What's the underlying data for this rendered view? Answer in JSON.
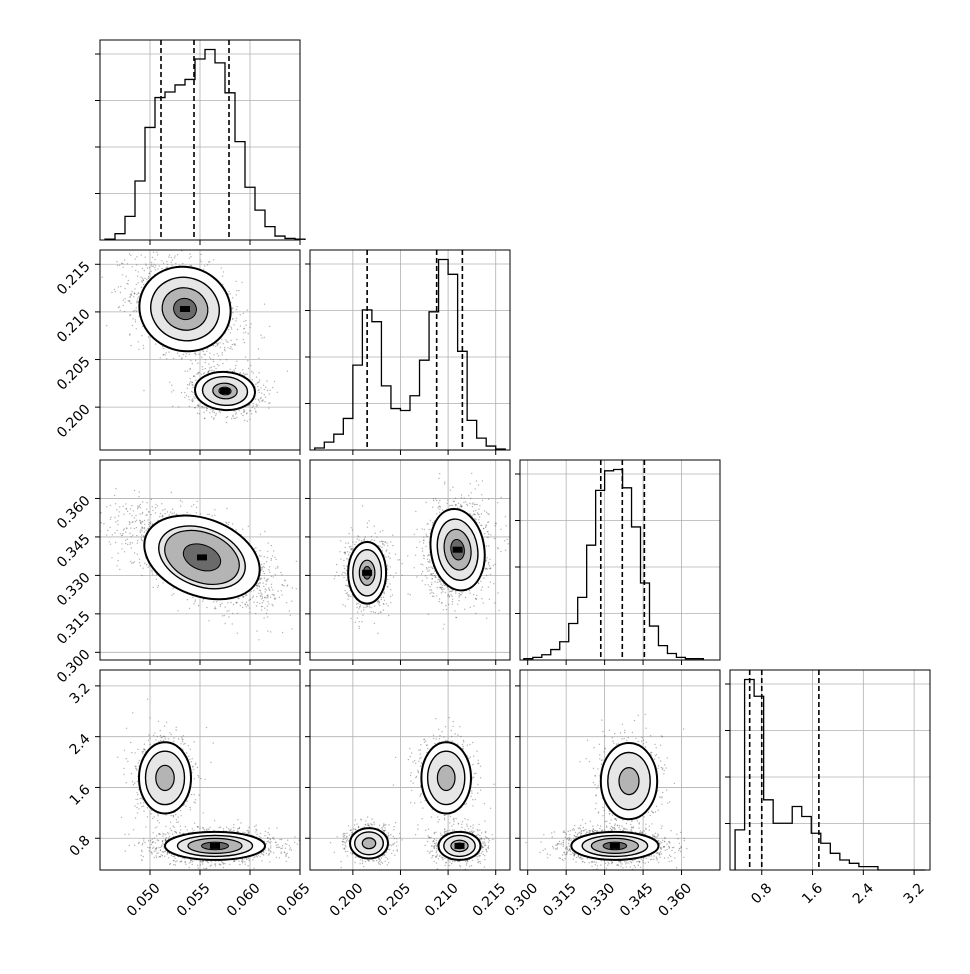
{
  "chart_data": {
    "type": "corner",
    "parameters": [
      {
        "range": [
          0.045,
          0.065
        ],
        "ticks": [
          0.05,
          0.055,
          0.06,
          0.065
        ],
        "tick_labels": [
          "0.050",
          "0.055",
          "0.060",
          "0.065"
        ],
        "quantiles": [
          0.0511,
          0.0544,
          0.0579
        ]
      },
      {
        "range": [
          0.1955,
          0.2165
        ],
        "ticks": [
          0.2,
          0.205,
          0.21,
          0.215
        ],
        "tick_labels": [
          "0.200",
          "0.205",
          "0.210",
          "0.215"
        ],
        "quantiles": [
          0.2015,
          0.2088,
          0.2115
        ]
      },
      {
        "range": [
          0.297,
          0.375
        ],
        "ticks": [
          0.3,
          0.315,
          0.33,
          0.345,
          0.36
        ],
        "tick_labels": [
          "0.300",
          "0.315",
          "0.330",
          "0.345",
          "0.360"
        ],
        "quantiles": [
          0.3285,
          0.3369,
          0.3455
        ]
      },
      {
        "range": [
          0.3,
          3.45
        ],
        "ticks": [
          0.8,
          1.6,
          2.4,
          3.2
        ],
        "tick_labels": [
          "0.8",
          "1.6",
          "2.4",
          "3.2"
        ],
        "quantiles": [
          0.61,
          0.8,
          1.7
        ]
      }
    ],
    "histograms": [
      {
        "param": 0,
        "start": 0.0455,
        "bin_width": 0.001,
        "counts": [
          1,
          8,
          30,
          75,
          143,
          181,
          188,
          197,
          204,
          230,
          242,
          225,
          187,
          125,
          67,
          38,
          17,
          5,
          2,
          1
        ]
      },
      {
        "param": 1,
        "start": 0.196,
        "bin_width": 0.001,
        "counts": [
          2,
          8,
          16,
          32,
          86,
          142,
          130,
          65,
          42,
          40,
          55,
          91,
          140,
          193,
          178,
          100,
          30,
          12,
          4,
          1
        ]
      },
      {
        "param": 2,
        "start": 0.2985,
        "bin_width": 0.0035,
        "counts": [
          1,
          2,
          4,
          8,
          14,
          28,
          48,
          88,
          130,
          145,
          146,
          132,
          102,
          59,
          26,
          11,
          5,
          2,
          1,
          1
        ]
      },
      {
        "param": 3,
        "start": 0.38,
        "bin_width": 0.15,
        "counts": [
          12,
          57,
          52,
          21,
          14,
          14,
          19,
          16,
          11,
          8,
          5,
          3,
          2,
          1,
          1,
          0,
          0,
          0,
          0,
          0
        ]
      }
    ],
    "pairs": [
      {
        "x_param": 0,
        "y_param": 1,
        "modes": [
          {
            "x": 0.0535,
            "y": 0.2103,
            "sx": 0.0023,
            "sy": 0.0022,
            "rho": -0.35,
            "weight": 0.6
          },
          {
            "x": 0.0575,
            "y": 0.2017,
            "sx": 0.0015,
            "sy": 0.001,
            "rho": -0.1,
            "weight": 0.4
          }
        ]
      },
      {
        "x_param": 0,
        "y_param": 2,
        "modes": [
          {
            "x": 0.0552,
            "y": 0.337,
            "sx": 0.003,
            "sy": 0.0075,
            "rho": -0.6,
            "weight": 1.0
          }
        ]
      },
      {
        "x_param": 1,
        "y_param": 2,
        "modes": [
          {
            "x": 0.2015,
            "y": 0.331,
            "sx": 0.001,
            "sy": 0.006,
            "rho": 0.0,
            "weight": 0.4
          },
          {
            "x": 0.211,
            "y": 0.34,
            "sx": 0.0014,
            "sy": 0.008,
            "rho": 0.1,
            "weight": 0.6
          }
        ]
      },
      {
        "x_param": 0,
        "y_param": 3,
        "modes": [
          {
            "x": 0.0515,
            "y": 1.75,
            "sx": 0.0013,
            "sy": 0.28,
            "rho": 0.0,
            "weight": 0.3
          },
          {
            "x": 0.0565,
            "y": 0.68,
            "sx": 0.0025,
            "sy": 0.11,
            "rho": 0.0,
            "weight": 0.7
          }
        ]
      },
      {
        "x_param": 1,
        "y_param": 3,
        "modes": [
          {
            "x": 0.2017,
            "y": 0.72,
            "sx": 0.001,
            "sy": 0.12,
            "rho": 0.0,
            "weight": 0.3
          },
          {
            "x": 0.2112,
            "y": 0.68,
            "sx": 0.0011,
            "sy": 0.11,
            "rho": 0.0,
            "weight": 0.4
          },
          {
            "x": 0.2098,
            "y": 1.75,
            "sx": 0.0013,
            "sy": 0.28,
            "rho": 0.0,
            "weight": 0.3
          }
        ]
      },
      {
        "x_param": 2,
        "y_param": 3,
        "modes": [
          {
            "x": 0.334,
            "y": 0.68,
            "sx": 0.0085,
            "sy": 0.11,
            "rho": 0.0,
            "weight": 0.7
          },
          {
            "x": 0.3395,
            "y": 1.7,
            "sx": 0.0055,
            "sy": 0.3,
            "rho": 0.0,
            "weight": 0.3
          }
        ]
      }
    ],
    "grid": true,
    "colors": {
      "ink": "#000000",
      "grid": "#b0b0b0",
      "density": "#000000"
    }
  }
}
